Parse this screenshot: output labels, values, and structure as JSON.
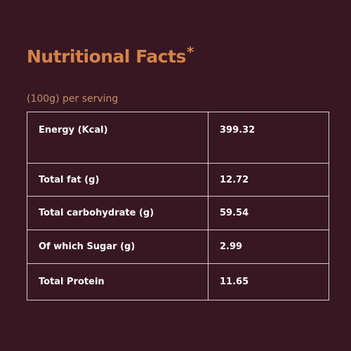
{
  "header": {
    "title": "Nutritional Facts",
    "title_mark": "*",
    "serving": "(100g) per serving"
  },
  "table": {
    "rows": [
      {
        "label": "Energy (Kcal)",
        "value": "399.32"
      },
      {
        "label": "Total fat (g)",
        "value": "12.72"
      },
      {
        "label": "Total carbohydrate (g)",
        "value": "59.54"
      },
      {
        "label": "Of which Sugar (g)",
        "value": "2.99"
      },
      {
        "label": "Total Protein",
        "value": "11.65"
      }
    ]
  },
  "colors": {
    "background": "#371722",
    "title": "#d4834a",
    "subtitle": "#c39068",
    "text": "#ffffff",
    "border": "#d9ccd0"
  }
}
